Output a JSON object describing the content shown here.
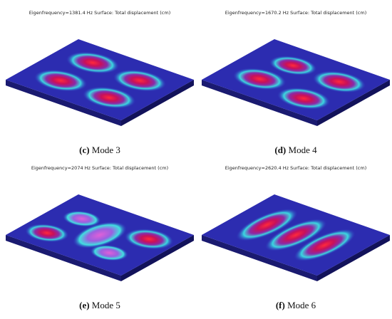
{
  "panels": [
    {
      "header": "Eigenfrequency=1381.4 Hz  Surface: Total displacement (cm)",
      "label": "(c)",
      "caption": "Mode 3"
    },
    {
      "header": "Eigenfrequency=1670.2 Hz  Surface: Total displacement (cm)",
      "label": "(d)",
      "caption": "Mode 4"
    },
    {
      "header": "Eigenfrequency=2074 Hz  Surface: Total displacement (cm)",
      "label": "(e)",
      "caption": "Mode 5"
    },
    {
      "header": "Eigenfrequency=2620.4 Hz  Surface: Total displacement (cm)",
      "label": "(f)",
      "caption": "Mode 6"
    }
  ]
}
